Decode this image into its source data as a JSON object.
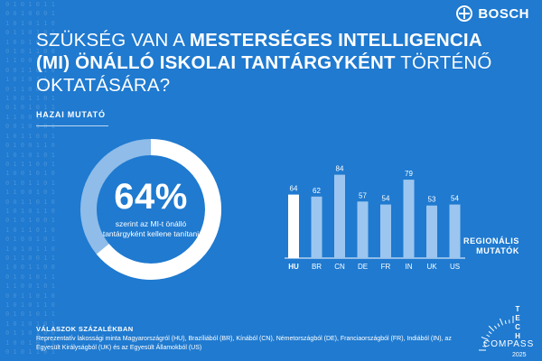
{
  "brand": {
    "name": "BOSCH",
    "logo_icon": "bosch-armature-icon"
  },
  "binary_background": "0 1 0 1 0 1 1\n0 0 1 0 0 0 1\n1 0 1 0 1 1 0\n0 1 1 0 1 0 1\n1 0 0 1 0 1 1\n0 1 0 1 1 0 0\n1 1 0 0 1 0 1\n0 0 1 1 0 1 0\n1 0 1 0 1 1 1\n0 1 1 0 0 1 0\n1 0 0 1 1 0 1\n0 1 0 1 0 1 1\n1 1 0 0 1 1 0\n0 0 1 0 1 0 1\n1 0 1 1 0 0 1\n0 1 0 0 1 1 0\n1 0 1 0 1 0 1\n0 1 1 1 0 0 1\n1 0 0 1 0 1 0\n0 1 0 1 1 0 1\n1 1 0 0 1 0 1\n0 0 1 1 0 1 0\n1 0 1 0 1 1 0\n0 1 0 1 0 0 1\n1 0 1 1 0 1 0\n0 1 0 0 1 0 1\n1 0 1 0 1 1 0\n0 1 1 0 0 1 1\n1 0 0 1 1 0 0\n0 1 0 1 0 1 1\n1 1 0 0 1 0 1\n0 0 1 1 0 1 0\n1 0 1 0 1 1 0\n0 1 0 1 0 1 1\n1 0 1 0 1 0 1\n0 1 1 0 1 0 0\n1 0 0 1 0 1 1\n0 1 0 1 1 0 1",
  "title": {
    "part1": "Szükség van a ",
    "bold": "mesterséges intelligencia (MI) önálló iskolai tantárgyként",
    "part2": " történő oktatására?"
  },
  "home_label": "HAZAI MUTATÓ",
  "donut": {
    "value": 64,
    "display": "64%",
    "text": "szerint az MI-t önálló tantárgyként kellene tanítani",
    "fill_color": "#ffffff",
    "track_color": "#8fbce9"
  },
  "regional_label_line1": "REGIONÁLIS",
  "regional_label_line2": "MUTATÓK",
  "chart_data": {
    "type": "bar",
    "categories": [
      "HU",
      "BR",
      "CN",
      "DE",
      "FR",
      "IN",
      "UK",
      "US"
    ],
    "values": [
      64,
      62,
      84,
      57,
      54,
      79,
      53,
      54
    ],
    "ylim": [
      0,
      100
    ],
    "highlight_category": "HU",
    "highlight_color": "#ffffff",
    "bar_color": "#9cc6ef",
    "value_unit": "%"
  },
  "footer": {
    "line1": "VÁLASZOK SZÁZALÉKBAN",
    "line2": "Reprezentatív lakossági minta Magyarországról (HU), Brazíliából (BR), Kínából (CN), Németországból (DE), Franciaországból (FR), Indiából (IN), az Egyesült Királyságból (UK) és az Egyesült Államokból (US)"
  },
  "compass": {
    "tech": "TECH",
    "word": "COMPASS",
    "year": "2025"
  }
}
